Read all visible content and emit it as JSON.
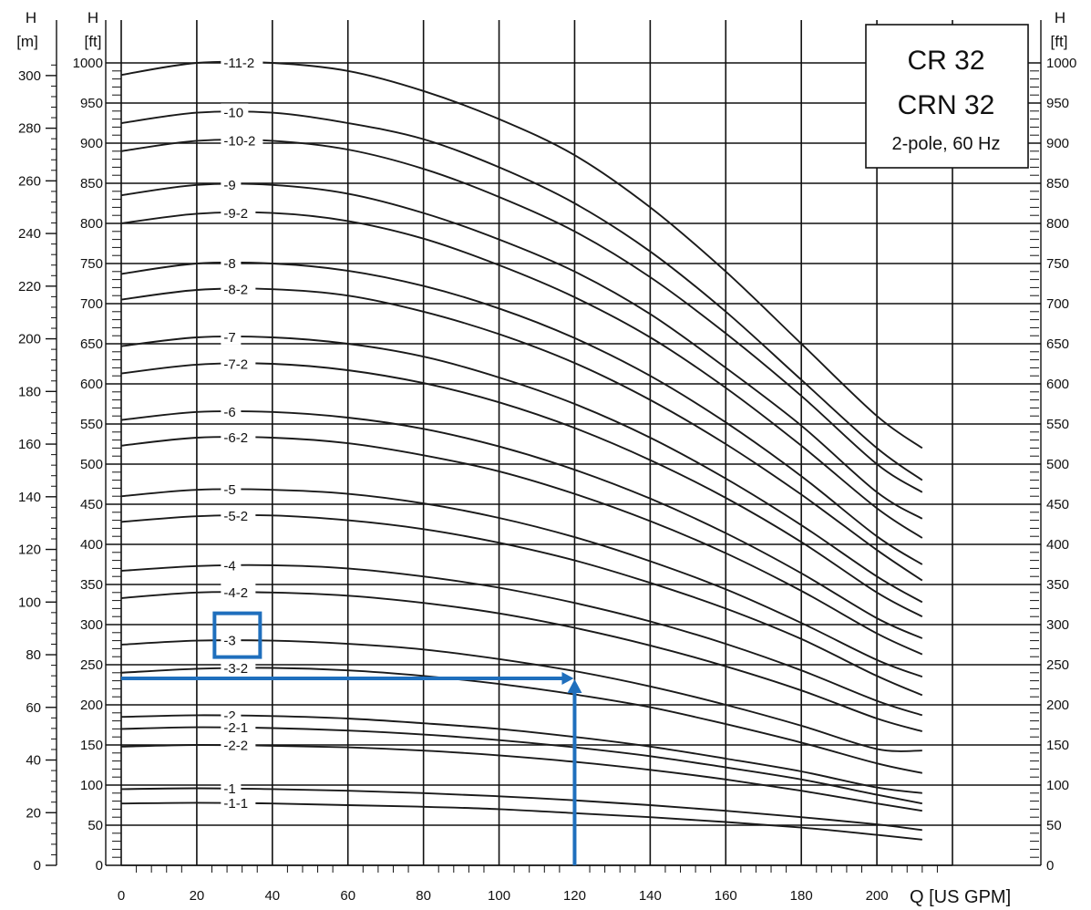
{
  "chart_data": {
    "type": "line",
    "title": [
      "CR 32",
      "CRN 32"
    ],
    "subtitle": "2-pole, 60 Hz",
    "xlabel": "Q [US GPM]",
    "ylabel_left_m": [
      "H",
      "[m]"
    ],
    "ylabel_left_ft": [
      "H",
      "[ft]"
    ],
    "ylabel_right_ft": [
      "H",
      "[ft]"
    ],
    "xlim": [
      0,
      220
    ],
    "ylim_ft": [
      0,
      1000
    ],
    "xticks": [
      0,
      20,
      40,
      60,
      80,
      100,
      120,
      140,
      160,
      180,
      200
    ],
    "xtick_labels": [
      "0",
      "20",
      "40",
      "60",
      "80",
      "100",
      "120",
      "140",
      "160",
      "180",
      "200"
    ],
    "yticks_ft": [
      0,
      50,
      100,
      150,
      200,
      250,
      300,
      350,
      400,
      450,
      500,
      550,
      600,
      650,
      700,
      750,
      800,
      850,
      900,
      950,
      1000
    ],
    "ytick_labels_ft": [
      "0",
      "50",
      "100",
      "150",
      "200",
      "250",
      "300",
      "350",
      "400",
      "450",
      "500",
      "550",
      "600",
      "650",
      "700",
      "750",
      "800",
      "850",
      "900",
      "950",
      "1000"
    ],
    "yticks_m": [
      0,
      20,
      40,
      60,
      80,
      100,
      120,
      140,
      160,
      180,
      200,
      220,
      240,
      260,
      280,
      300
    ],
    "ytick_labels_m": [
      "0",
      "20",
      "40",
      "60",
      "80",
      "100",
      "120",
      "140",
      "160",
      "180",
      "200",
      "220",
      "240",
      "260",
      "280",
      "300"
    ],
    "grid": true,
    "x": [
      0,
      20,
      40,
      60,
      80,
      100,
      120,
      140,
      160,
      180,
      200,
      212
    ],
    "series": [
      {
        "name": "-11-2",
        "values": [
          985,
          1000,
          1000,
          990,
          965,
          930,
          885,
          820,
          740,
          650,
          560,
          520
        ]
      },
      {
        "name": "-10",
        "values": [
          925,
          938,
          938,
          925,
          905,
          870,
          825,
          765,
          690,
          605,
          520,
          480
        ]
      },
      {
        "name": "-10-2",
        "values": [
          890,
          903,
          903,
          892,
          868,
          833,
          790,
          733,
          663,
          585,
          500,
          465
        ]
      },
      {
        "name": "-9",
        "values": [
          835,
          848,
          848,
          837,
          813,
          780,
          740,
          687,
          620,
          548,
          465,
          432
        ]
      },
      {
        "name": "-9-2",
        "values": [
          800,
          812,
          813,
          803,
          781,
          748,
          708,
          658,
          595,
          523,
          445,
          408
        ]
      },
      {
        "name": "-8",
        "values": [
          737,
          750,
          750,
          741,
          722,
          694,
          657,
          610,
          552,
          485,
          410,
          375
        ]
      },
      {
        "name": "-8-2",
        "values": [
          705,
          717,
          718,
          710,
          690,
          662,
          626,
          580,
          525,
          462,
          393,
          355
        ]
      },
      {
        "name": "-7",
        "values": [
          647,
          658,
          658,
          650,
          634,
          608,
          575,
          533,
          482,
          424,
          360,
          328
        ]
      },
      {
        "name": "-7-2",
        "values": [
          613,
          624,
          625,
          617,
          601,
          577,
          545,
          505,
          458,
          403,
          340,
          310
        ]
      },
      {
        "name": "-6",
        "values": [
          555,
          565,
          565,
          558,
          544,
          522,
          493,
          457,
          414,
          364,
          308,
          283
        ]
      },
      {
        "name": "-6-2",
        "values": [
          523,
          533,
          533,
          526,
          511,
          491,
          463,
          429,
          389,
          342,
          289,
          263
        ]
      },
      {
        "name": "-5",
        "values": [
          460,
          468,
          468,
          463,
          451,
          433,
          409,
          379,
          344,
          302,
          256,
          235
        ]
      },
      {
        "name": "-5-2",
        "values": [
          428,
          435,
          436,
          430,
          419,
          402,
          380,
          352,
          320,
          282,
          236,
          212
        ]
      },
      {
        "name": "-4",
        "values": [
          367,
          373,
          374,
          370,
          360,
          346,
          327,
          304,
          276,
          243,
          205,
          187
        ]
      },
      {
        "name": "-4-2",
        "values": [
          333,
          340,
          340,
          336,
          327,
          314,
          296,
          274,
          248,
          218,
          183,
          167
        ]
      },
      {
        "name": "-3",
        "values": [
          275,
          280,
          280,
          276,
          269,
          257,
          242,
          223,
          200,
          174,
          145,
          143
        ]
      },
      {
        "name": "-3-2",
        "values": [
          240,
          245,
          246,
          243,
          236,
          226,
          213,
          197,
          176,
          153,
          127,
          115
        ]
      },
      {
        "name": "-2",
        "values": [
          185,
          187,
          186,
          183,
          177,
          170,
          160,
          148,
          133,
          117,
          97,
          90
        ]
      },
      {
        "name": "-2-1",
        "values": [
          170,
          172,
          171,
          168,
          163,
          156,
          147,
          136,
          122,
          107,
          88,
          77
        ]
      },
      {
        "name": "-2-2",
        "values": [
          148,
          150,
          149,
          147,
          143,
          137,
          129,
          119,
          107,
          93,
          77,
          68
        ]
      },
      {
        "name": "-1",
        "values": [
          95,
          96,
          95,
          93,
          90,
          86,
          81,
          75,
          68,
          60,
          51,
          44
        ]
      },
      {
        "name": "-1-1",
        "values": [
          77,
          78,
          77,
          75,
          73,
          70,
          65,
          60,
          54,
          47,
          38,
          32
        ]
      }
    ],
    "annotation": {
      "highlight_label": "-3",
      "operating_point": {
        "q": 120,
        "h_ft": 233
      },
      "color": "#1f6fbd"
    }
  }
}
